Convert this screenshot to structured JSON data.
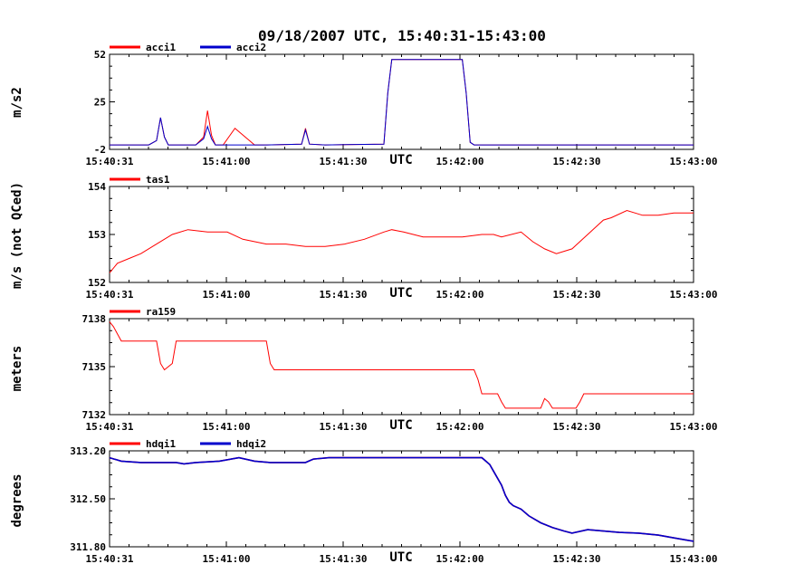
{
  "title": "09/18/2007  UTC, 15:40:31-15:43:00",
  "x_unit_label": "UTC",
  "y_side_labels": [
    "m/s2",
    "m/s (not QCed)",
    "meters",
    "degrees"
  ],
  "colors": {
    "red": "#ff0000",
    "blue": "#0000cc",
    "axis": "#000000"
  },
  "chart_data": [
    {
      "type": "line",
      "ylabel": "m/s2",
      "ylim": [
        -2,
        52
      ],
      "yticks": [
        "52",
        "25",
        "-2"
      ],
      "x_start": "15:40:31",
      "x_end": "15:43:00",
      "xticks": [
        "15:40:31",
        "15:41:00",
        "15:41:30",
        "15:42:00",
        "15:42:30",
        "15:43:00"
      ],
      "xlabel": "UTC",
      "x": [
        0,
        5,
        10,
        12,
        13,
        14,
        15,
        18,
        22,
        24,
        25,
        26,
        27,
        29,
        32,
        37,
        40,
        49,
        50,
        51,
        55,
        70,
        71,
        72,
        73,
        75,
        80,
        90,
        91,
        92,
        93,
        95,
        110,
        130,
        149
      ],
      "series": [
        {
          "name": "acci1",
          "color": "#ff0000",
          "values": [
            0.5,
            0.5,
            0.5,
            3,
            16,
            5,
            0.5,
            0.5,
            0.5,
            5,
            20,
            6,
            0.5,
            0.5,
            10,
            0.5,
            0.5,
            1,
            10,
            1,
            0.5,
            1,
            30,
            49,
            49,
            49,
            49,
            49,
            30,
            2,
            0.5,
            0.5,
            0.5,
            0.5,
            0.5
          ]
        },
        {
          "name": "acci2",
          "color": "#0000cc",
          "values": [
            0.5,
            0.5,
            0.5,
            3,
            16,
            5,
            0.5,
            0.5,
            0.5,
            4,
            11,
            4,
            0.5,
            0.5,
            0.5,
            0.5,
            0.5,
            1,
            9,
            1,
            0.5,
            1,
            30,
            49,
            49,
            49,
            49,
            49,
            30,
            2,
            0.5,
            0.5,
            0.5,
            0.5,
            0.5
          ]
        }
      ]
    },
    {
      "type": "line",
      "ylabel": "m/s (not QCed)",
      "ylim": [
        152,
        154
      ],
      "yticks": [
        "154",
        "153",
        "152"
      ],
      "x_start": "15:40:31",
      "x_end": "15:43:00",
      "xticks": [
        "15:40:31",
        "15:41:00",
        "15:41:30",
        "15:42:00",
        "15:42:30",
        "15:43:00"
      ],
      "xlabel": "UTC",
      "x": [
        0,
        2,
        5,
        8,
        12,
        16,
        20,
        25,
        30,
        34,
        40,
        45,
        50,
        55,
        60,
        65,
        70,
        72,
        75,
        80,
        85,
        90,
        95,
        98,
        100,
        105,
        108,
        111,
        114,
        118,
        122,
        126,
        128,
        132,
        136,
        140,
        144,
        148,
        149
      ],
      "series": [
        {
          "name": "tas1",
          "color": "#ff0000",
          "values": [
            152.2,
            152.4,
            152.5,
            152.6,
            152.8,
            153.0,
            153.1,
            153.05,
            153.05,
            152.9,
            152.8,
            152.8,
            152.75,
            152.75,
            152.8,
            152.9,
            153.05,
            153.1,
            153.05,
            152.95,
            152.95,
            152.95,
            153.0,
            153.0,
            152.95,
            153.05,
            152.85,
            152.7,
            152.6,
            152.7,
            153.0,
            153.3,
            153.35,
            153.5,
            153.4,
            153.4,
            153.45,
            153.45,
            153.45
          ]
        }
      ]
    },
    {
      "type": "line",
      "ylabel": "meters",
      "ylim": [
        7132,
        7138
      ],
      "yticks": [
        "7138",
        "7135",
        "7132"
      ],
      "x_start": "15:40:31",
      "x_end": "15:43:00",
      "xticks": [
        "15:40:31",
        "15:41:00",
        "15:41:30",
        "15:42:00",
        "15:42:30",
        "15:43:00"
      ],
      "xlabel": "UTC",
      "x": [
        0,
        1,
        3,
        12,
        13,
        14,
        16,
        17,
        18,
        40,
        41,
        42,
        93,
        94,
        95,
        99,
        100,
        101,
        110,
        111,
        112,
        113,
        119,
        120,
        121,
        149
      ],
      "series": [
        {
          "name": "ra159",
          "color": "#ff0000",
          "values": [
            7137.8,
            7137.5,
            7136.6,
            7136.6,
            7135.2,
            7134.8,
            7135.2,
            7136.6,
            7136.6,
            7136.6,
            7135.2,
            7134.8,
            7134.8,
            7134.2,
            7133.3,
            7133.3,
            7132.8,
            7132.4,
            7132.4,
            7133.0,
            7132.8,
            7132.4,
            7132.4,
            7132.8,
            7133.3,
            7133.3
          ]
        }
      ]
    },
    {
      "type": "line",
      "ylabel": "degrees",
      "ylim": [
        311.8,
        313.2
      ],
      "yticks": [
        "313.20",
        "312.50",
        "311.80"
      ],
      "x_start": "15:40:31",
      "x_end": "15:43:00",
      "xticks": [
        "15:40:31",
        "15:41:00",
        "15:41:30",
        "15:42:00",
        "15:42:30",
        "15:43:00"
      ],
      "xlabel": "UTC",
      "x": [
        0,
        3,
        8,
        12,
        17,
        19,
        22,
        28,
        33,
        37,
        41,
        45,
        50,
        52,
        56,
        70,
        85,
        92,
        95,
        96,
        97,
        98,
        100,
        101,
        102,
        103,
        105,
        107,
        110,
        113,
        116,
        118,
        122,
        126,
        130,
        135,
        140,
        144,
        147,
        149
      ],
      "series": [
        {
          "name": "hdqi1",
          "color": "#ff0000",
          "values": [
            313.1,
            313.05,
            313.03,
            313.03,
            313.03,
            313.01,
            313.03,
            313.05,
            313.1,
            313.05,
            313.03,
            313.03,
            313.03,
            313.08,
            313.1,
            313.1,
            313.1,
            313.1,
            313.1,
            313.05,
            313.0,
            312.9,
            312.7,
            312.55,
            312.45,
            312.4,
            312.35,
            312.25,
            312.15,
            312.08,
            312.03,
            312.0,
            312.05,
            312.03,
            312.01,
            312.0,
            311.97,
            311.93,
            311.9,
            311.88
          ]
        },
        {
          "name": "hdqi2",
          "color": "#0000cc",
          "values": [
            313.1,
            313.05,
            313.03,
            313.03,
            313.03,
            313.01,
            313.03,
            313.05,
            313.1,
            313.05,
            313.03,
            313.03,
            313.03,
            313.08,
            313.1,
            313.1,
            313.1,
            313.1,
            313.1,
            313.05,
            313.0,
            312.9,
            312.7,
            312.55,
            312.45,
            312.4,
            312.35,
            312.25,
            312.15,
            312.08,
            312.03,
            312.0,
            312.05,
            312.03,
            312.01,
            312.0,
            311.97,
            311.93,
            311.9,
            311.88
          ]
        }
      ]
    }
  ]
}
